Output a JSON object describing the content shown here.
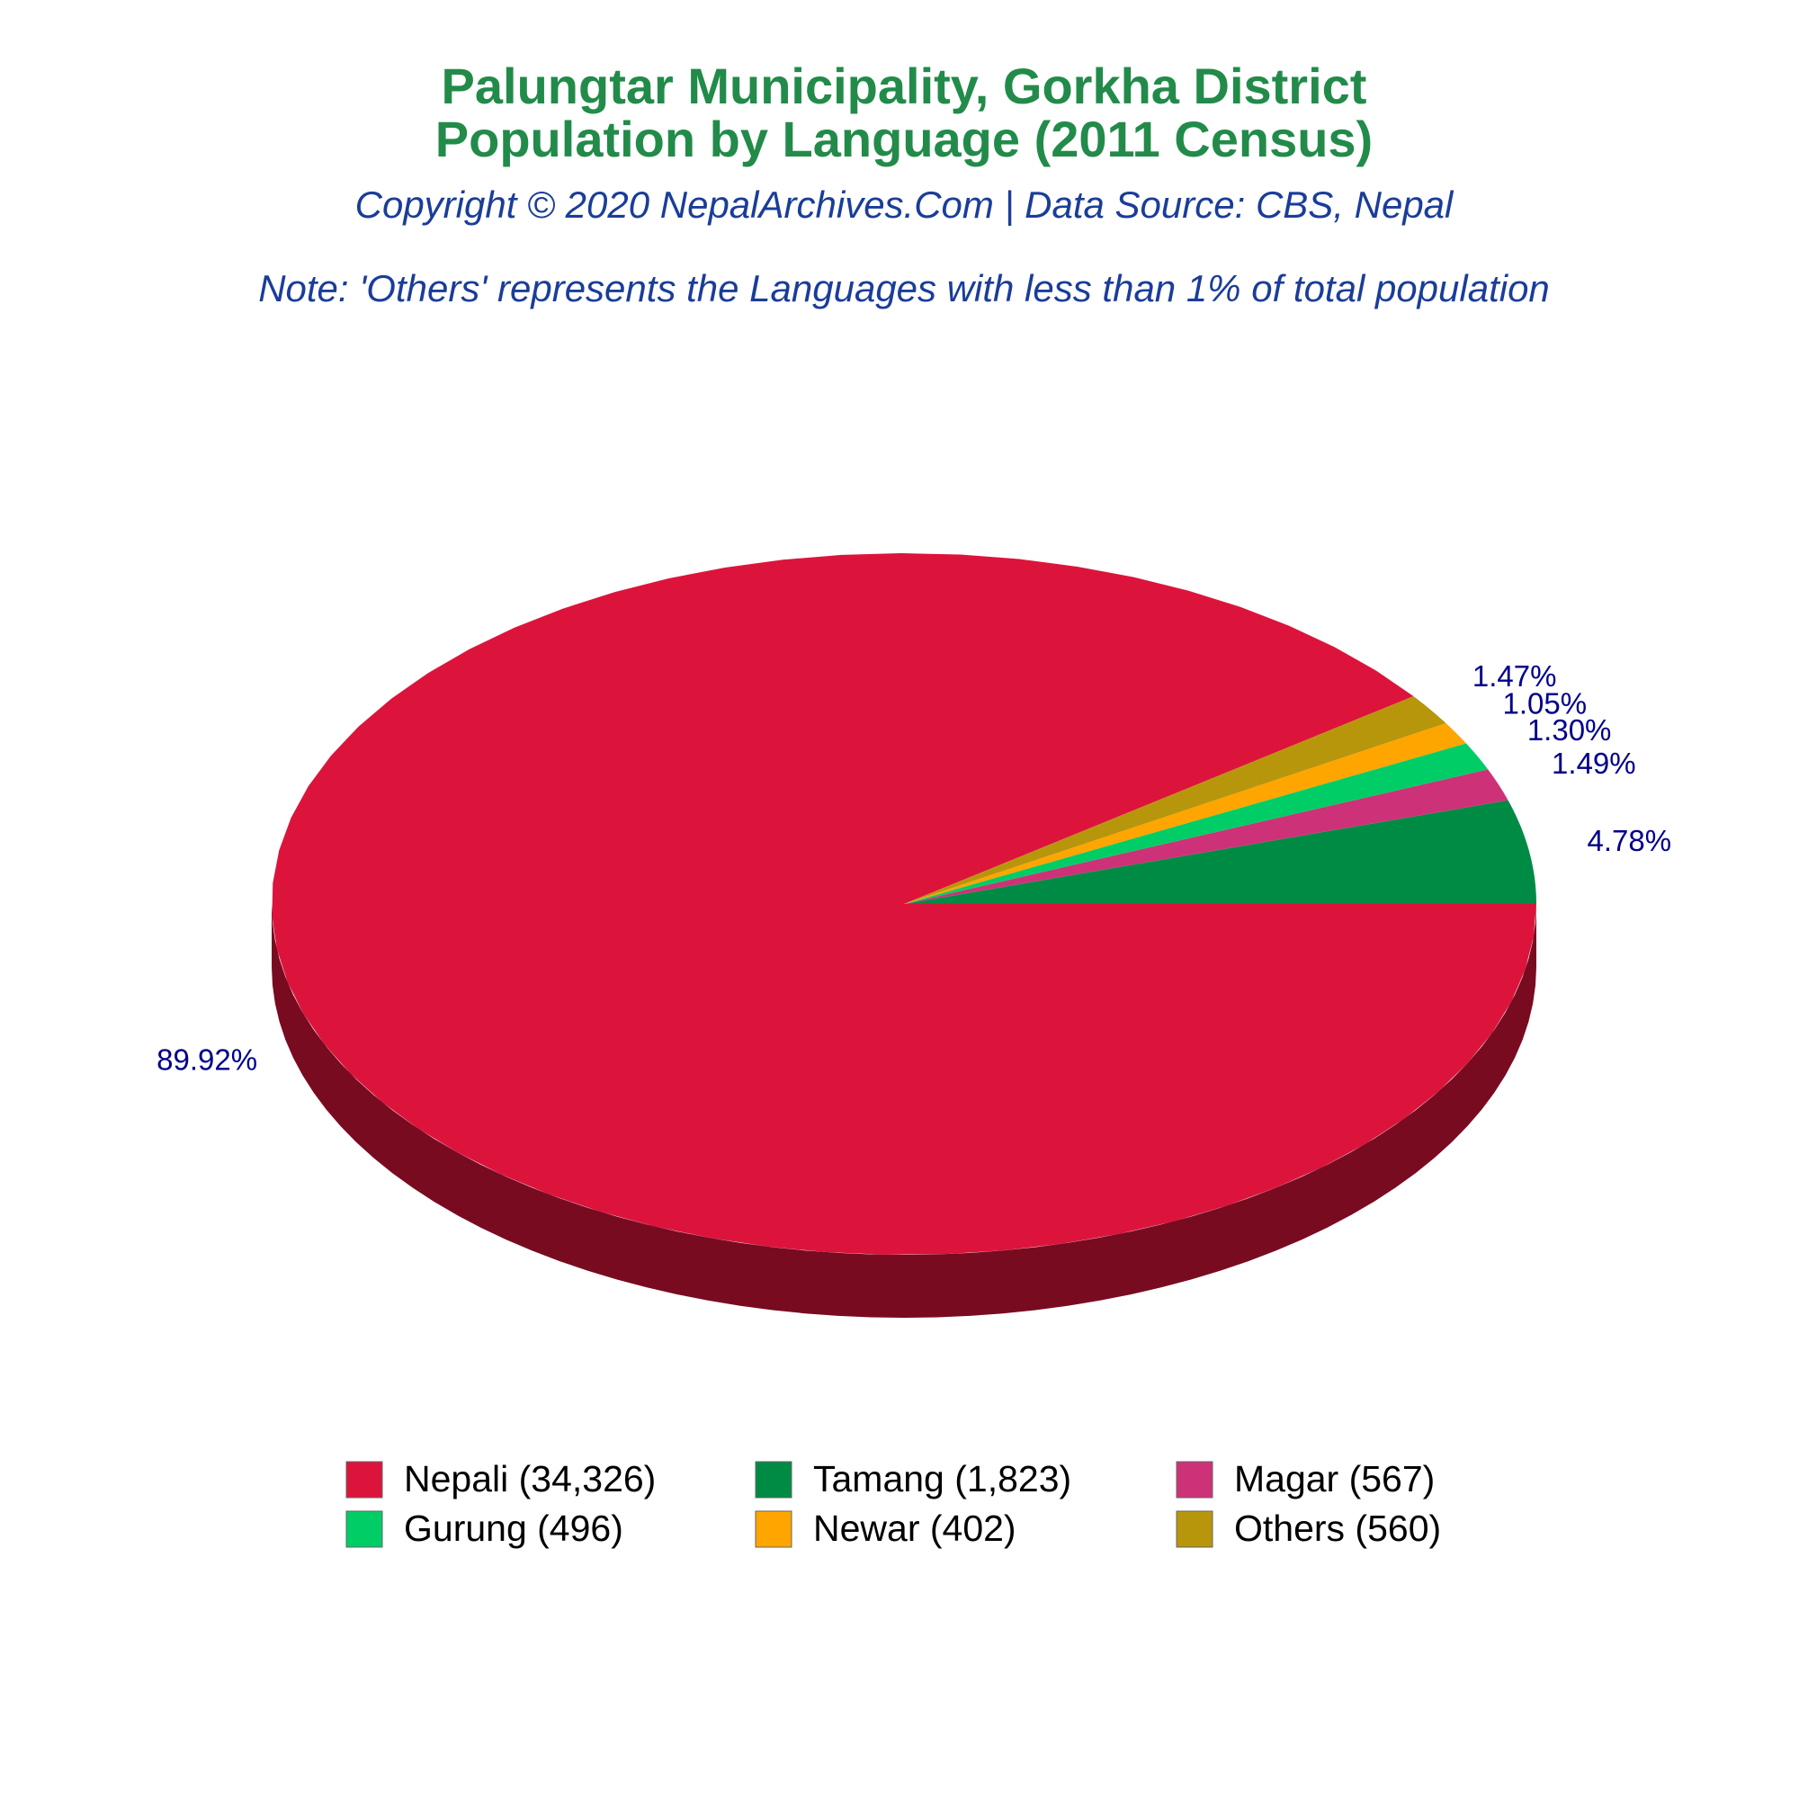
{
  "chart_data": {
    "type": "pie",
    "title": [
      "Palungtar Municipality, Gorkha District",
      "Population by Language (2011 Census)"
    ],
    "subtitle": "Copyright © 2020 NepalArchives.Com | Data Source: CBS, Nepal",
    "note": "Note: 'Others' represents the Languages with less than 1% of total population",
    "categories": [
      "Nepali (34,326)",
      "Tamang (1,823)",
      "Magar (567)",
      "Gurung (496)",
      "Newar (402)",
      "Others (560)"
    ],
    "values": [
      89.92,
      4.78,
      1.49,
      1.3,
      1.05,
      1.47
    ],
    "value_labels": [
      "89.92%",
      "4.78%",
      "1.49%",
      "1.30%",
      "1.05%",
      "1.47%"
    ],
    "colors": [
      "#dc143c",
      "#008b45",
      "#cd3278",
      "#00cd66",
      "#ffa500",
      "#b8960b"
    ],
    "legend": "bottom"
  }
}
